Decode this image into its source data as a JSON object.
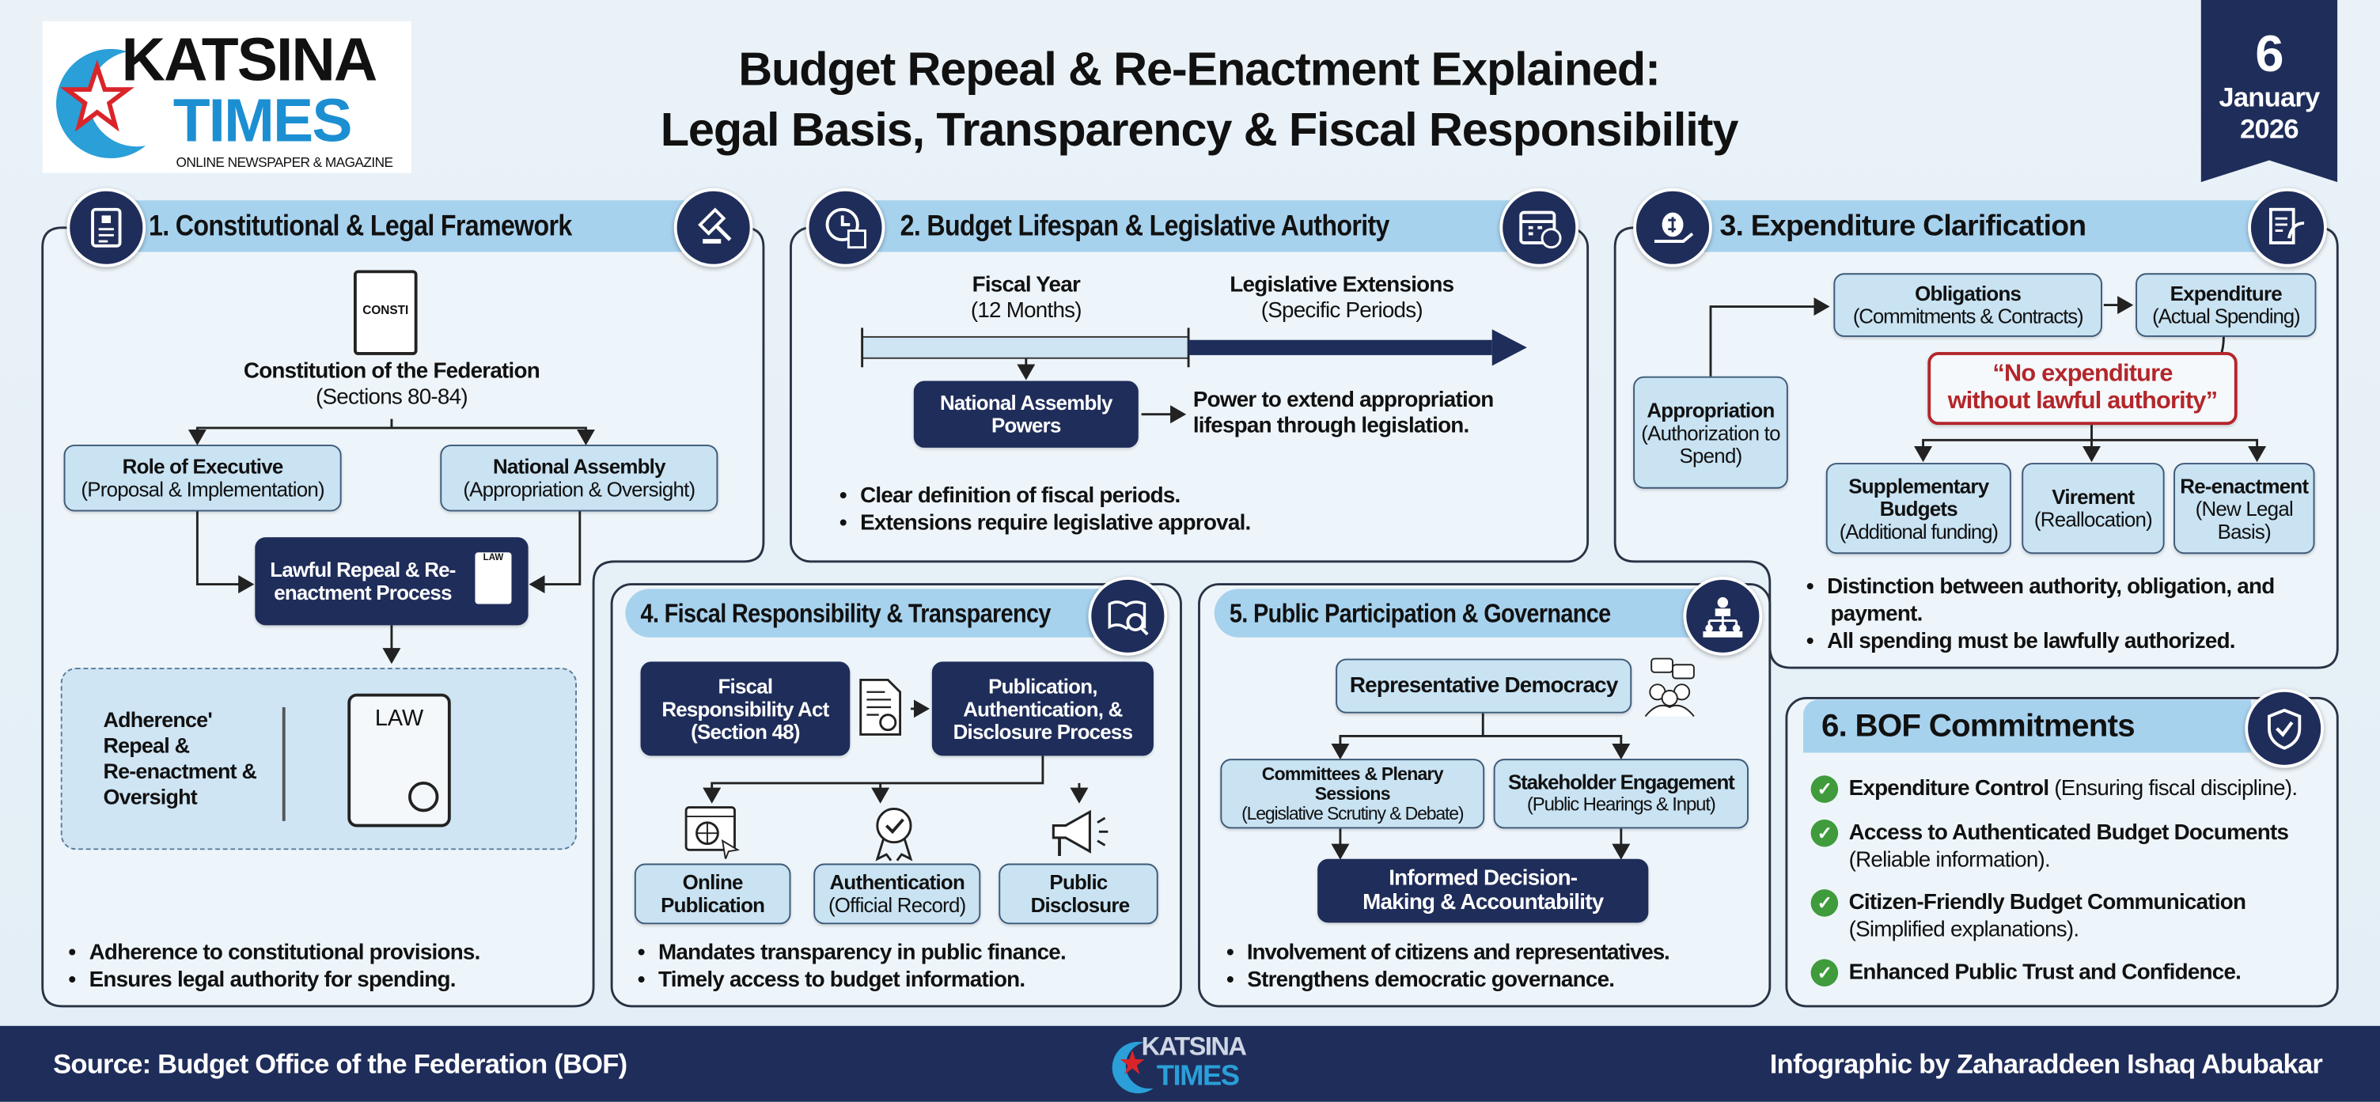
{
  "header": {
    "logo": {
      "top": "KATSINA",
      "bottom": "TIMES",
      "tagline": "ONLINE NEWSPAPER & MAGAZINE"
    },
    "title_line1": "Budget Repeal & Re-Enactment Explained:",
    "title_line2": "Legal Basis, Transparency & Fiscal Responsibility",
    "date": {
      "day": "6",
      "month": "January",
      "year": "2026"
    }
  },
  "colors": {
    "navy": "#1f2d5a",
    "header_bar": "#a7d2ee",
    "box": "#c9e3f3",
    "alert_red": "#b3262a",
    "check_green": "#3f9b3c"
  },
  "panel1": {
    "title": "1. Constitutional & Legal Framework",
    "book_label": "CONSTI",
    "constitution": {
      "title": "Constitution of the Federation",
      "sub": "(Sections 80-84)"
    },
    "executive": {
      "title": "Role of Executive",
      "sub": "(Proposal & Implementation)"
    },
    "assembly": {
      "title": "National Assembly",
      "sub": "(Appropriation & Oversight)"
    },
    "process": "Lawful Repeal & Re-enactment Process",
    "law_doc_label": "LAW",
    "adherence": [
      "Adherence'",
      "Repeal &",
      "Re-enactment &",
      "Oversight"
    ],
    "scroll_label": "LAW",
    "bullets": [
      "Adherence to constitutional provisions.",
      "Ensures legal authority for spending."
    ]
  },
  "panel2": {
    "title": "2. Budget Lifespan & Legislative Authority",
    "fiscal": {
      "title": "Fiscal Year",
      "sub": "(12 Months)"
    },
    "extensions": {
      "title": "Legislative Extensions",
      "sub": "(Specific Periods)"
    },
    "powers": "National Assembly Powers",
    "power_text": [
      "Power to extend appropriation",
      "lifespan through legislation."
    ],
    "bullets": [
      "Clear definition of fiscal periods.",
      "Extensions require legislative approval."
    ]
  },
  "panel3": {
    "title": "3. Expenditure Clarification",
    "obligations": {
      "title": "Obligations",
      "sub": "(Commitments & Contracts)"
    },
    "expenditure": {
      "title": "Expenditure",
      "sub": "(Actual Spending)"
    },
    "appropriation": {
      "title": "Appropriation",
      "sub": "(Authorization to Spend)"
    },
    "quote": [
      "“No expenditure",
      "without lawful authority”"
    ],
    "supplementary": {
      "title": "Supplementary Budgets",
      "sub": "(Additional funding)"
    },
    "virement": {
      "title": "Virement",
      "sub": "(Reallocation)"
    },
    "reenactment": {
      "title": "Re-enactment",
      "sub": "(New Legal Basis)"
    },
    "bullets": [
      "Distinction between authority, obligation, and payment.",
      "All spending must be lawfully authorized."
    ]
  },
  "panel4": {
    "title": "4. Fiscal Responsibility & Transparency",
    "act": "Fiscal Responsibility Act (Section 48)",
    "process": "Publication, Authentication, & Disclosure Process",
    "online": {
      "title": "Online Publication"
    },
    "auth": {
      "title": "Authentication",
      "sub": "(Official Record)"
    },
    "disclosure": {
      "title": "Public Disclosure"
    },
    "bullets": [
      "Mandates transparency in public finance.",
      "Timely access to budget information."
    ]
  },
  "panel5": {
    "title": "5. Public Participation & Governance",
    "democracy": "Representative Democracy",
    "committees": {
      "title": "Committees & Plenary Sessions",
      "sub": "(Legislative Scrutiny & Debate)"
    },
    "stakeholder": {
      "title": "Stakeholder Engagement",
      "sub": "(Public Hearings & Input)"
    },
    "decision": "Informed Decision-Making & Accountability",
    "bullets": [
      "Involvement of citizens and representatives.",
      "Strengthens democratic governance."
    ]
  },
  "panel6": {
    "title": "6. BOF Commitments",
    "items": [
      {
        "bold": "Expenditure Control",
        "rest": " (Ensuring fiscal discipline)."
      },
      {
        "bold": "Access to Authenticated Budget Documents",
        "rest": "(Reliable information)."
      },
      {
        "bold": "Citizen-Friendly Budget Communication",
        "rest": "(Simplified explanations)."
      },
      {
        "bold": "Enhanced Public Trust and Confidence.",
        "rest": ""
      }
    ]
  },
  "footer": {
    "source": "Source: Budget Office of the Federation (BOF)",
    "credit": "Infographic by Zaharaddeen Ishaq Abubakar",
    "logo": {
      "top": "KATSINA",
      "bottom": "TIMES"
    }
  }
}
